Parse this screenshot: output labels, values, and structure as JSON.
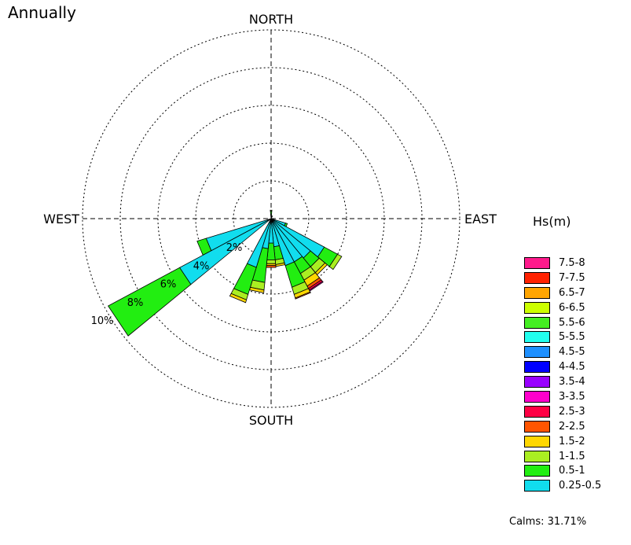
{
  "chart_data": {
    "type": "windrose",
    "title": "Annually",
    "direction_labels": {
      "north": "NORTH",
      "south": "SOUTH",
      "east": "EAST",
      "west": "WEST"
    },
    "radial_ticks": [
      "2%",
      "4%",
      "6%",
      "8%",
      "10%"
    ],
    "radial_max": 10,
    "legend_title": "Hs(m)",
    "legend": [
      {
        "label": "7.5-8",
        "color": "#ff1a8c"
      },
      {
        "label": "7-7.5",
        "color": "#ff2200"
      },
      {
        "label": "6.5-7",
        "color": "#ffa500"
      },
      {
        "label": "6-6.5",
        "color": "#ccff00"
      },
      {
        "label": "5.5-6",
        "color": "#44ee22"
      },
      {
        "label": "5-5.5",
        "color": "#22ffee"
      },
      {
        "label": "4.5-5",
        "color": "#1e90ff"
      },
      {
        "label": "4-4.5",
        "color": "#0000ff"
      },
      {
        "label": "3.5-4",
        "color": "#9900ff"
      },
      {
        "label": "3-3.5",
        "color": "#ff00cc"
      },
      {
        "label": "2.5-3",
        "color": "#ff0044"
      },
      {
        "label": "2-2.5",
        "color": "#ff5500"
      },
      {
        "label": "1.5-2",
        "color": "#ffd700"
      },
      {
        "label": "1-1.5",
        "color": "#aaee22"
      },
      {
        "label": "0.5-1",
        "color": "#22ee11"
      },
      {
        "label": "0.25-0.5",
        "color": "#11ddee"
      }
    ],
    "calms": "Calms: 31.71%",
    "series_note_order": [
      "0.25-0.5",
      "0.5-1",
      "1-1.5",
      "1.5-2",
      "2-2.5",
      "2.5-3",
      "3-3.5"
    ],
    "directions": [
      {
        "bearing": 0,
        "values": [
          0.2,
          0.2,
          0.05
        ]
      },
      {
        "bearing": 22.5,
        "values": [
          0.1,
          0.05
        ]
      },
      {
        "bearing": 112.5,
        "values": [
          0.8,
          0.1
        ]
      },
      {
        "bearing": 123.75,
        "values": [
          3.2,
          0.8,
          0.25
        ]
      },
      {
        "bearing": 135,
        "values": [
          2.7,
          0.6,
          0.4,
          0.15
        ]
      },
      {
        "bearing": 146.25,
        "values": [
          2.6,
          0.7,
          0.4,
          0.35,
          0.15,
          0.1,
          0.05
        ]
      },
      {
        "bearing": 157.5,
        "values": [
          2.6,
          1.2,
          0.4,
          0.2,
          0.05
        ]
      },
      {
        "bearing": 168.75,
        "values": [
          1.5,
          0.7,
          0.25,
          0.1
        ]
      },
      {
        "bearing": 180,
        "values": [
          1.3,
          0.9,
          0.2,
          0.1,
          0.1
        ]
      },
      {
        "bearing": 191.25,
        "values": [
          1.6,
          1.8,
          0.4,
          0.15
        ]
      },
      {
        "bearing": 202.5,
        "values": [
          2.7,
          1.5,
          0.3,
          0.15
        ]
      },
      {
        "bearing": 236.25,
        "values": [
          5.5,
          4.3
        ]
      },
      {
        "bearing": 247.5,
        "values": [
          3.6,
          0.5
        ]
      }
    ]
  }
}
